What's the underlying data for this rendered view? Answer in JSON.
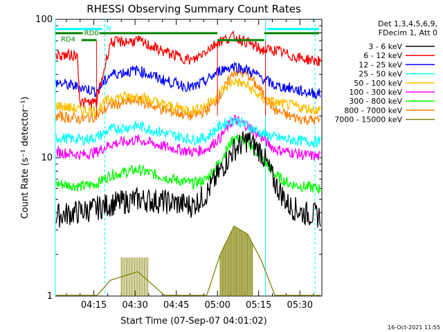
{
  "chart_data": {
    "type": "line",
    "title": "RHESSI Observing Summary Count Rates",
    "xlabel": "Start Time (07-Sep-07 04:01:02)",
    "ylabel": "Count Rate (s⁻¹ detector⁻¹)",
    "yscale": "log",
    "ylim": [
      1,
      100
    ],
    "xlim_minutes": [
      0,
      97
    ],
    "x_ticks": [
      {
        "label": "04:15",
        "minute": 14
      },
      {
        "label": "04:30",
        "minute": 29
      },
      {
        "label": "04:45",
        "minute": 44
      },
      {
        "label": "05:00",
        "minute": 59
      },
      {
        "label": "05:15",
        "minute": 74
      },
      {
        "label": "05:30",
        "minute": 89
      }
    ],
    "y_ticks": [
      {
        "label": "1",
        "value": 1
      },
      {
        "label": "10",
        "value": 10
      },
      {
        "label": "100",
        "value": 100
      }
    ],
    "legend_header": [
      "Det 1,3,4,5,6,9,",
      "FDecim 1, Att 0"
    ],
    "timestamp": "16-Oct-2021 11:55",
    "annotations": [
      {
        "label": "N",
        "type": "night",
        "color": "#00ffff"
      },
      {
        "label": "RD0",
        "type": "radiation",
        "color": "#008000"
      },
      {
        "label": "RD4",
        "type": "radiation",
        "color": "#008000"
      }
    ],
    "markers_minutes": {
      "solid_cyan": [
        0,
        76.5
      ],
      "dashed_cyan": [
        18,
        94.5
      ],
      "red_vertical": [
        15,
        59,
        76.5
      ]
    },
    "series": [
      {
        "name": "3 - 6 keV",
        "color": "#000000",
        "x": [
          0,
          10,
          15,
          20,
          30,
          40,
          50,
          55,
          60,
          65,
          70,
          75,
          80,
          85,
          90,
          96
        ],
        "y": [
          3.8,
          4.1,
          4.3,
          4.6,
          5.0,
          4.8,
          4.5,
          5.5,
          8.0,
          11.5,
          13.5,
          11.0,
          6.5,
          4.5,
          4.0,
          3.8
        ]
      },
      {
        "name": "6 - 12 keV",
        "color": "#ff0000",
        "x": [
          0,
          8,
          9,
          15,
          20,
          30,
          40,
          50,
          55,
          60,
          65,
          70,
          75,
          80,
          85,
          90,
          96
        ],
        "y": [
          55,
          55,
          25,
          25,
          68,
          70,
          58,
          50,
          60,
          70,
          75,
          68,
          60,
          60,
          55,
          52,
          50
        ]
      },
      {
        "name": "12 - 25 keV",
        "color": "#0000ff",
        "x": [
          0,
          10,
          15,
          20,
          30,
          40,
          50,
          55,
          60,
          65,
          70,
          75,
          80,
          85,
          90,
          96
        ],
        "y": [
          35,
          32,
          30,
          40,
          43,
          36,
          32,
          36,
          43,
          46,
          43,
          38,
          33,
          32,
          30,
          29
        ]
      },
      {
        "name": "25 - 50 keV",
        "color": "#00ffff",
        "x": [
          0,
          10,
          15,
          20,
          30,
          40,
          50,
          55,
          60,
          65,
          70,
          75,
          80,
          85,
          90,
          96
        ],
        "y": [
          14,
          13.5,
          14,
          16,
          17,
          15,
          13.5,
          14,
          17,
          19,
          17,
          15,
          14,
          13.5,
          13.2,
          13
        ]
      },
      {
        "name": "50 - 100 keV",
        "color": "#ffbf00",
        "x": [
          0,
          10,
          15,
          20,
          30,
          40,
          50,
          55,
          60,
          65,
          70,
          75,
          80,
          85,
          90,
          96
        ],
        "y": [
          24,
          22,
          22,
          27,
          28,
          24,
          22,
          24,
          30,
          36,
          33,
          27,
          25,
          24,
          23,
          22
        ]
      },
      {
        "name": "100 - 300 keV",
        "color": "#ff00ff",
        "x": [
          0,
          10,
          15,
          20,
          30,
          40,
          50,
          55,
          60,
          65,
          70,
          75,
          80,
          85,
          90,
          96
        ],
        "y": [
          11,
          10.5,
          11,
          12.5,
          13.5,
          12,
          11,
          11.5,
          14,
          19,
          17,
          14,
          11.5,
          11,
          10.5,
          10.2
        ]
      },
      {
        "name": "300 - 800 keV",
        "color": "#00ff00",
        "x": [
          0,
          10,
          15,
          20,
          30,
          40,
          50,
          55,
          60,
          65,
          70,
          75,
          80,
          85,
          90,
          96
        ],
        "y": [
          6.5,
          6.2,
          6.5,
          7.5,
          8.2,
          7.2,
          6.5,
          7.0,
          9.5,
          14,
          13,
          10,
          7.5,
          6.5,
          6.2,
          6.0
        ]
      },
      {
        "name": "800 - 7000 keV",
        "color": "#ff8000",
        "x": [
          0,
          10,
          15,
          20,
          30,
          40,
          50,
          55,
          60,
          65,
          70,
          75,
          80,
          85,
          90,
          96
        ],
        "y": [
          20,
          19,
          20,
          24,
          26,
          22,
          20,
          22,
          28,
          42,
          40,
          30,
          22,
          20,
          19,
          18.5
        ]
      },
      {
        "name": "7000 - 15000 keV",
        "color": "#808000",
        "x": [
          0,
          10,
          15,
          20,
          30,
          40,
          50,
          55,
          60,
          65,
          70,
          75,
          80,
          85,
          90,
          96
        ],
        "y": [
          1,
          1,
          1,
          1.3,
          1.5,
          1,
          1,
          1,
          2,
          3.2,
          2.8,
          1.8,
          1,
          1,
          1,
          1
        ]
      }
    ]
  }
}
